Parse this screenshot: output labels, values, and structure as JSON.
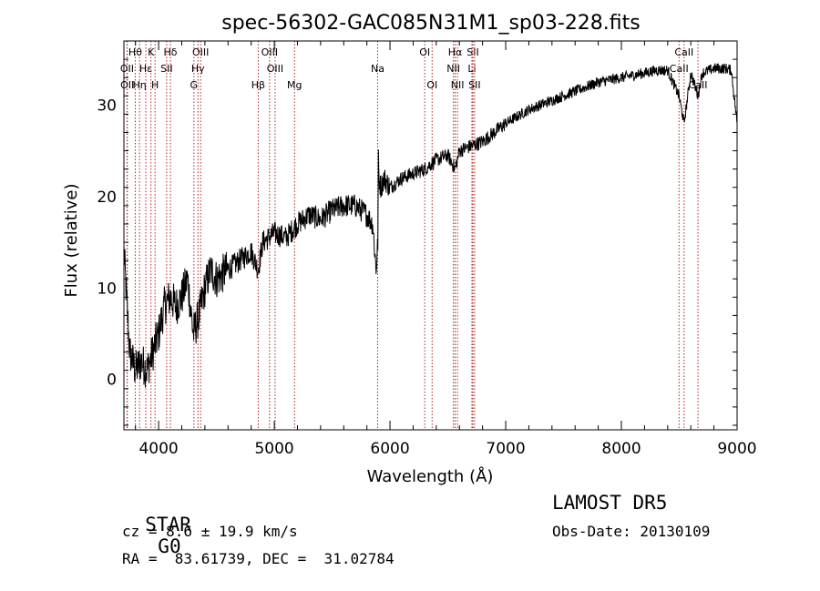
{
  "chart_data": {
    "type": "line",
    "title": "spec-56302-GAC085N31M1_sp03-228.fits",
    "xlabel": "Wavelength (Å)",
    "ylabel": "Flux (relative)",
    "xlim": [
      3700,
      9000
    ],
    "ylim": [
      -5.5,
      37
    ],
    "xticks": [
      4000,
      5000,
      6000,
      7000,
      8000,
      9000
    ],
    "yticks": [
      0,
      10,
      20,
      30
    ],
    "grid": false,
    "line_color": "#000000",
    "marker_color": "#b22222",
    "series": [
      {
        "x": [
          3700,
          3750,
          3800,
          3850,
          3900,
          3950,
          4000,
          4050,
          4100,
          4150,
          4200,
          4250,
          4300,
          4350,
          4400,
          4450,
          4500,
          4600,
          4700,
          4800,
          4860,
          4900,
          5000,
          5100,
          5200,
          5300,
          5400,
          5500,
          5600,
          5700,
          5800,
          5850,
          5880,
          5895,
          5900,
          5905,
          5920,
          5950,
          6000,
          6100,
          6200,
          6300,
          6400,
          6500,
          6563,
          6600,
          6700,
          6800,
          6900,
          7000,
          7200,
          7400,
          7600,
          7800,
          8000,
          8200,
          8300,
          8400,
          8498,
          8542,
          8600,
          8662,
          8700,
          8800,
          8900,
          8950,
          9000
        ],
        "y": [
          14,
          3,
          1,
          2,
          1,
          3,
          5,
          8,
          9,
          8,
          9,
          11,
          5,
          7,
          10,
          12,
          11,
          12,
          13,
          14,
          12,
          15,
          16,
          15.5,
          17,
          18,
          17.5,
          18.5,
          19,
          19,
          18,
          17,
          12,
          15,
          24,
          22,
          21,
          22,
          21,
          22,
          22.5,
          23,
          24,
          24.5,
          23,
          25,
          25.5,
          26,
          27,
          28,
          29.5,
          30.5,
          31.5,
          32.5,
          33,
          33.5,
          33.8,
          33.8,
          31,
          28,
          33.5,
          31,
          33.5,
          34,
          34,
          33.8,
          28
        ]
      }
    ],
    "line_markers": [
      {
        "label": "Hθ",
        "x": 3798,
        "row": 0
      },
      {
        "label": "K",
        "x": 3934,
        "row": 0
      },
      {
        "label": "Hδ",
        "x": 4102,
        "row": 0
      },
      {
        "label": "OIII",
        "x": 4363,
        "row": 0
      },
      {
        "label": "OIII",
        "x": 4959,
        "row": 0
      },
      {
        "label": "OI",
        "x": 6300,
        "row": 0
      },
      {
        "label": "Hα",
        "x": 6563,
        "row": 0
      },
      {
        "label": "SII",
        "x": 6716,
        "row": 0
      },
      {
        "label": "CaII",
        "x": 8542,
        "row": 0
      },
      {
        "label": "OII",
        "x": 3727,
        "row": 1
      },
      {
        "label": "Hε",
        "x": 3889,
        "row": 1
      },
      {
        "label": "SII",
        "x": 4069,
        "row": 1
      },
      {
        "label": "Hγ",
        "x": 4340,
        "row": 1
      },
      {
        "label": "OIII",
        "x": 5007,
        "row": 1
      },
      {
        "label": "Na",
        "x": 5893,
        "row": 1
      },
      {
        "label": "NII",
        "x": 6548,
        "row": 1
      },
      {
        "label": "Li",
        "x": 6708,
        "row": 1
      },
      {
        "label": "CaII",
        "x": 8498,
        "row": 1
      },
      {
        "label": "OII",
        "x": 3729,
        "row": 2
      },
      {
        "label": "Hη",
        "x": 3835,
        "row": 2
      },
      {
        "label": "H",
        "x": 3969,
        "row": 2
      },
      {
        "label": "G",
        "x": 4305,
        "row": 2
      },
      {
        "label": "Hβ",
        "x": 4861,
        "row": 2
      },
      {
        "label": "Mg",
        "x": 5175,
        "row": 2
      },
      {
        "label": "OI",
        "x": 6364,
        "row": 2
      },
      {
        "label": "NII",
        "x": 6583,
        "row": 2
      },
      {
        "label": "SII",
        "x": 6731,
        "row": 2
      },
      {
        "label": "CaII",
        "x": 8662,
        "row": 2
      }
    ]
  },
  "info": {
    "class_label": "STAR",
    "subclass": "G0",
    "survey": "LAMOST DR5",
    "redshift": "cz = 8.6 ± 19.9 km/s",
    "obs_date": "Obs-Date: 20130109",
    "coords": "RA =  83.61739, DEC =  31.02784"
  }
}
